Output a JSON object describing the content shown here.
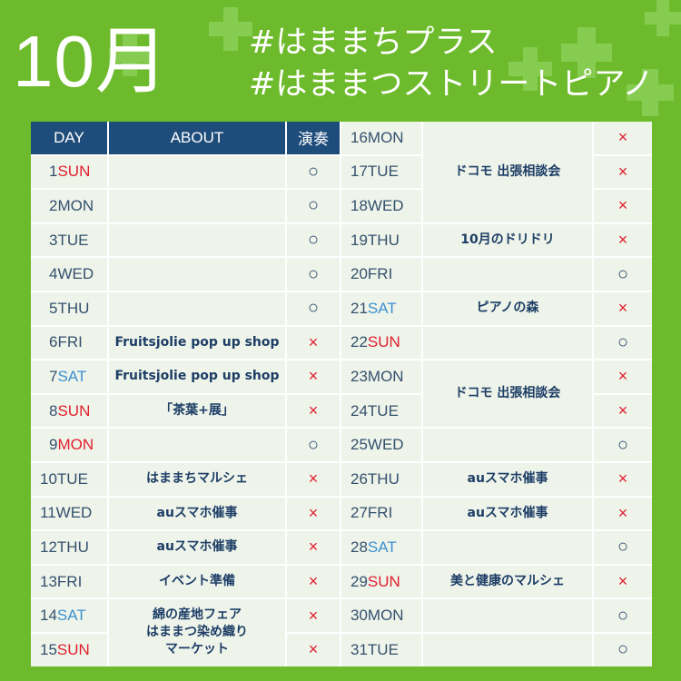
{
  "header": {
    "month": "10月",
    "hashtag1": "#はままちプラス",
    "hashtag2": "#はままつストリートピアノ"
  },
  "columns": {
    "day": "DAY",
    "about": "ABOUT",
    "performance": "演奏"
  },
  "days": [
    {
      "num": "1",
      "dow": "SUN",
      "dow_color": "red",
      "mark": "○"
    },
    {
      "num": "2",
      "dow": "MON",
      "dow_color": "normal",
      "mark": "○"
    },
    {
      "num": "3",
      "dow": "TUE",
      "dow_color": "normal",
      "mark": "○"
    },
    {
      "num": "4",
      "dow": "WED",
      "dow_color": "normal",
      "mark": "○"
    },
    {
      "num": "5",
      "dow": "THU",
      "dow_color": "normal",
      "mark": "○"
    },
    {
      "num": "6",
      "dow": "FRI",
      "dow_color": "normal",
      "mark": "×"
    },
    {
      "num": "7",
      "dow": "SAT",
      "dow_color": "blue",
      "mark": "×"
    },
    {
      "num": "8",
      "dow": "SUN",
      "dow_color": "red",
      "mark": "×"
    },
    {
      "num": "9",
      "dow": "MON",
      "dow_color": "red",
      "mark": "○"
    },
    {
      "num": "10",
      "dow": "TUE",
      "dow_color": "normal",
      "mark": "×"
    },
    {
      "num": "11",
      "dow": "WED",
      "dow_color": "normal",
      "mark": "×"
    },
    {
      "num": "12",
      "dow": "THU",
      "dow_color": "normal",
      "mark": "×"
    },
    {
      "num": "13",
      "dow": "FRI",
      "dow_color": "normal",
      "mark": "×"
    },
    {
      "num": "14",
      "dow": "SAT",
      "dow_color": "blue",
      "mark": "×"
    },
    {
      "num": "15",
      "dow": "SUN",
      "dow_color": "red",
      "mark": "×"
    },
    {
      "num": "16",
      "dow": "MON",
      "dow_color": "normal",
      "mark": "×"
    },
    {
      "num": "17",
      "dow": "TUE",
      "dow_color": "normal",
      "mark": "×"
    },
    {
      "num": "18",
      "dow": "WED",
      "dow_color": "normal",
      "mark": "×"
    },
    {
      "num": "19",
      "dow": "THU",
      "dow_color": "normal",
      "mark": "×"
    },
    {
      "num": "20",
      "dow": "FRI",
      "dow_color": "normal",
      "mark": "○"
    },
    {
      "num": "21",
      "dow": "SAT",
      "dow_color": "blue",
      "mark": "×"
    },
    {
      "num": "22",
      "dow": "SUN",
      "dow_color": "red",
      "mark": "○"
    },
    {
      "num": "23",
      "dow": "MON",
      "dow_color": "normal",
      "mark": "×"
    },
    {
      "num": "24",
      "dow": "TUE",
      "dow_color": "normal",
      "mark": "×"
    },
    {
      "num": "25",
      "dow": "WED",
      "dow_color": "normal",
      "mark": "○"
    },
    {
      "num": "26",
      "dow": "THU",
      "dow_color": "normal",
      "mark": "×"
    },
    {
      "num": "27",
      "dow": "FRI",
      "dow_color": "normal",
      "mark": "×"
    },
    {
      "num": "28",
      "dow": "SAT",
      "dow_color": "blue",
      "mark": "○"
    },
    {
      "num": "29",
      "dow": "SUN",
      "dow_color": "red",
      "mark": "×"
    },
    {
      "num": "30",
      "dow": "MON",
      "dow_color": "normal",
      "mark": "○"
    },
    {
      "num": "31",
      "dow": "TUE",
      "dow_color": "normal",
      "mark": "○"
    }
  ],
  "events": [
    {
      "from": 1,
      "to": 1,
      "text": ""
    },
    {
      "from": 2,
      "to": 2,
      "text": ""
    },
    {
      "from": 3,
      "to": 3,
      "text": ""
    },
    {
      "from": 4,
      "to": 4,
      "text": ""
    },
    {
      "from": 5,
      "to": 5,
      "text": ""
    },
    {
      "from": 6,
      "to": 6,
      "text": "Fruitsjolie pop up shop"
    },
    {
      "from": 7,
      "to": 7,
      "text": "Fruitsjolie pop up shop"
    },
    {
      "from": 8,
      "to": 8,
      "text": "「茶葉+展」"
    },
    {
      "from": 9,
      "to": 9,
      "text": ""
    },
    {
      "from": 10,
      "to": 10,
      "text": "はままちマルシェ"
    },
    {
      "from": 11,
      "to": 11,
      "text": "auスマホ催事"
    },
    {
      "from": 12,
      "to": 12,
      "text": "auスマホ催事"
    },
    {
      "from": 13,
      "to": 13,
      "text": "イベント準備"
    },
    {
      "from": 14,
      "to": 15,
      "text": "綿の産地フェア\nはままつ染め織り\nマーケット"
    },
    {
      "from": 16,
      "to": 18,
      "text": "ドコモ 出張相談会"
    },
    {
      "from": 19,
      "to": 19,
      "text": "10月のドリドリ"
    },
    {
      "from": 20,
      "to": 20,
      "text": ""
    },
    {
      "from": 21,
      "to": 21,
      "text": "ピアノの森"
    },
    {
      "from": 22,
      "to": 22,
      "text": ""
    },
    {
      "from": 23,
      "to": 24,
      "text": "ドコモ 出張相談会"
    },
    {
      "from": 25,
      "to": 25,
      "text": ""
    },
    {
      "from": 26,
      "to": 26,
      "text": "auスマホ催事"
    },
    {
      "from": 27,
      "to": 27,
      "text": "auスマホ催事"
    },
    {
      "from": 28,
      "to": 28,
      "text": ""
    },
    {
      "from": 29,
      "to": 29,
      "text": "美と健康のマルシェ"
    },
    {
      "from": 30,
      "to": 30,
      "text": ""
    },
    {
      "from": 31,
      "to": 31,
      "text": ""
    }
  ]
}
